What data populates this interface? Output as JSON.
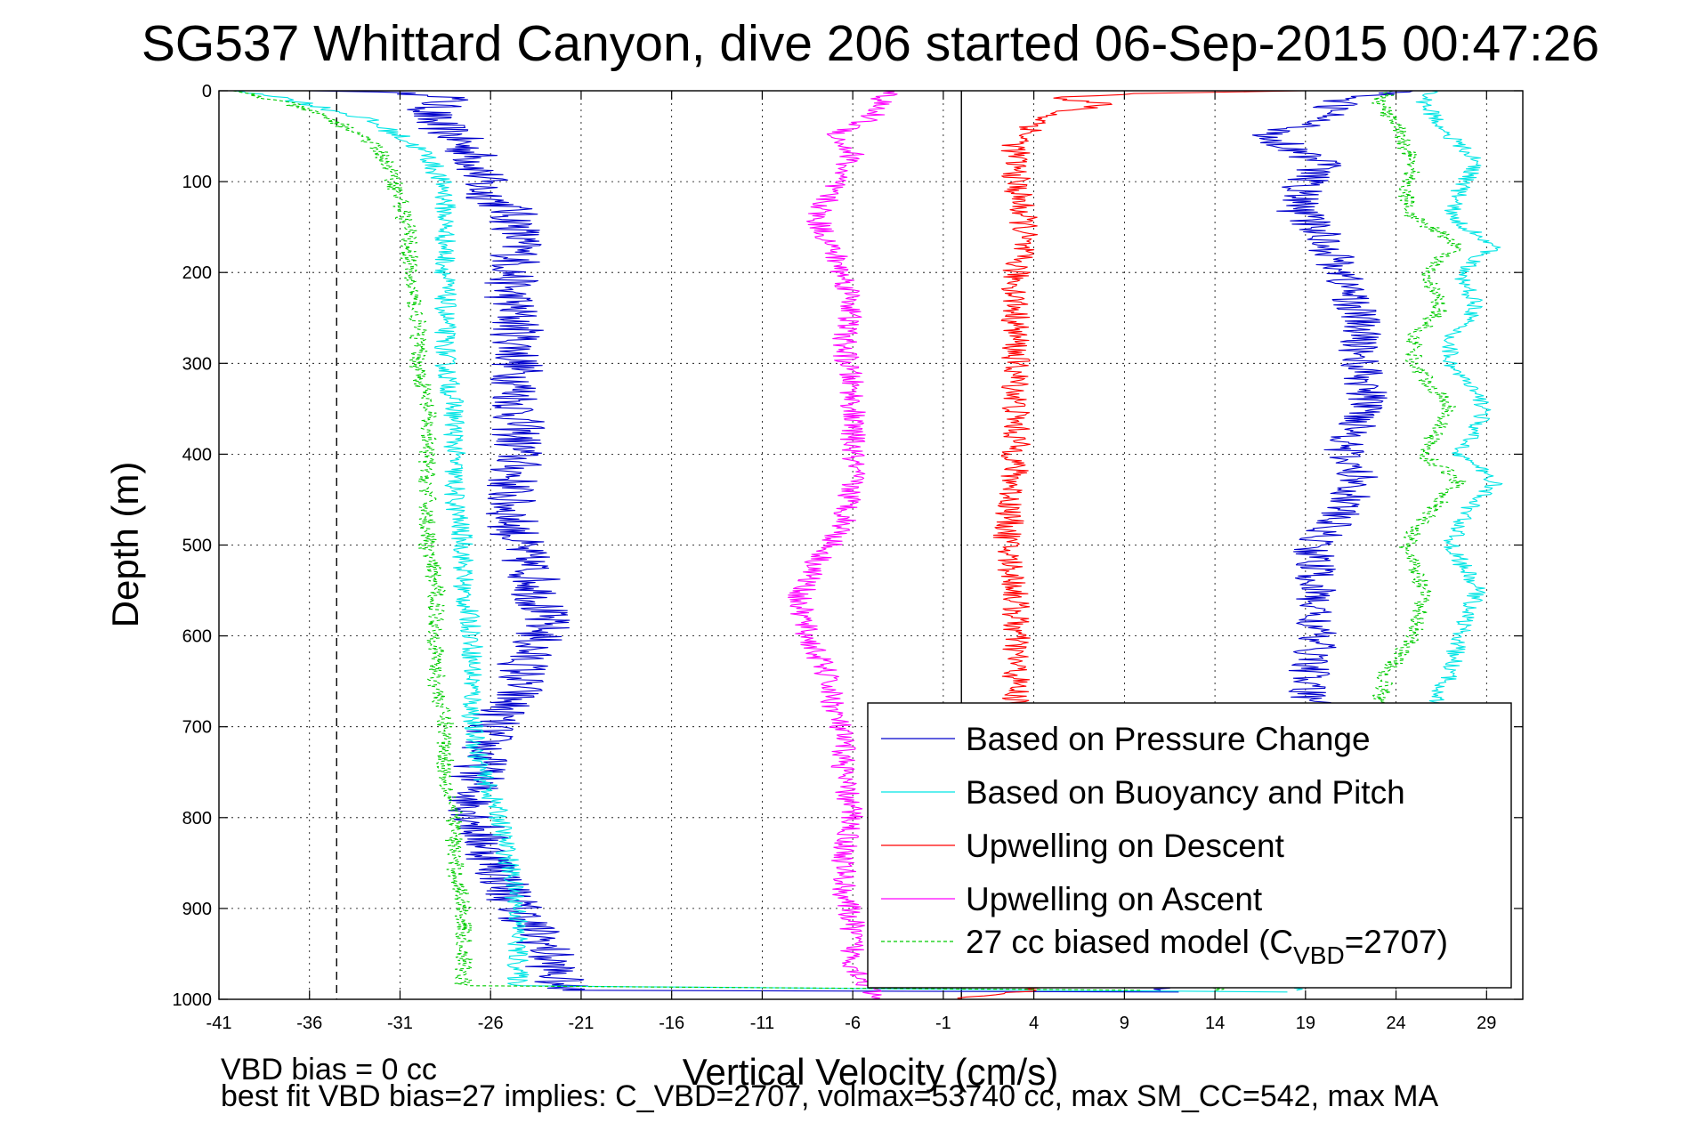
{
  "chart_data": {
    "type": "line",
    "title": "SG537 Whittard Canyon, dive 206 started 06-Sep-2015 00:47:26",
    "xlabel": "Vertical Velocity (cm/s)",
    "ylabel": "Depth (m)",
    "xlim": [
      -41,
      31
    ],
    "ylim": [
      1000,
      0
    ],
    "xticks": [
      -41,
      -36,
      -31,
      -26,
      -21,
      -16,
      -11,
      -6,
      -1,
      4,
      9,
      14,
      19,
      24,
      29
    ],
    "yticks": [
      0,
      100,
      200,
      300,
      400,
      500,
      600,
      700,
      800,
      900,
      1000
    ],
    "xgrid": true,
    "ygrid": true,
    "legend_position": "bottom-right",
    "reference_lines": [
      {
        "x": 0,
        "style": "solid",
        "color": "#000000"
      },
      {
        "x": -34.5,
        "style": "dashed",
        "color": "#000000"
      }
    ],
    "series": [
      {
        "name": "Based on Pressure Change",
        "color": "#0000cc",
        "style": "solid",
        "noise": 1.5,
        "depth": [
          0,
          5,
          15,
          30,
          50,
          70,
          90,
          110,
          130,
          150,
          180,
          220,
          260,
          300,
          350,
          400,
          450,
          500,
          540,
          590,
          620,
          660,
          700,
          740,
          780,
          820,
          860,
          900,
          940,
          970,
          990,
          992
        ],
        "velocity": [
          -35,
          -28,
          -29,
          -29.5,
          -28,
          -27,
          -26.5,
          -26.5,
          -25,
          -24.5,
          -24.5,
          -25,
          -24.5,
          -24.5,
          -24.5,
          -24.5,
          -25,
          -24.5,
          -23.5,
          -23,
          -24,
          -24.5,
          -26,
          -26.5,
          -27,
          -26.5,
          -25.5,
          -24.5,
          -23,
          -22.5,
          -22,
          12
        ]
      },
      {
        "name": "Based on Buoyancy and Pitch",
        "color": "#00e5e5",
        "style": "solid",
        "noise": 0.6,
        "depth": [
          0,
          5,
          15,
          30,
          50,
          70,
          90,
          110,
          150,
          200,
          260,
          300,
          350,
          400,
          450,
          500,
          550,
          600,
          650,
          700,
          750,
          800,
          850,
          900,
          950,
          985,
          992
        ],
        "velocity": [
          -40,
          -38,
          -36,
          -33,
          -31,
          -29.5,
          -29,
          -28.5,
          -28.5,
          -28.5,
          -28.5,
          -28.5,
          -28,
          -28,
          -28,
          -27.5,
          -27.5,
          -27,
          -27,
          -27,
          -26.5,
          -25.5,
          -25,
          -24.5,
          -24.5,
          -24.5,
          18
        ]
      },
      {
        "name": "Upwelling on Descent",
        "color": "#ff0000",
        "style": "solid",
        "noise": 0.8,
        "depth": [
          0,
          3,
          8,
          15,
          25,
          40,
          60,
          100,
          150,
          200,
          300,
          400,
          500,
          550,
          600,
          700,
          800,
          900,
          950,
          990,
          1000
        ],
        "velocity": [
          19,
          10,
          5,
          8,
          5,
          4,
          3,
          3,
          3.5,
          3,
          3,
          3,
          2.5,
          3,
          3,
          3,
          3,
          3,
          3.5,
          4,
          0
        ]
      },
      {
        "name": "Upwelling on Ascent",
        "color": "#ff00ff",
        "style": "solid",
        "noise": 0.7,
        "depth": [
          0,
          10,
          30,
          50,
          70,
          100,
          140,
          180,
          230,
          280,
          330,
          380,
          430,
          480,
          520,
          560,
          600,
          640,
          680,
          720,
          760,
          800,
          840,
          880,
          920,
          960,
          990,
          1000
        ],
        "velocity": [
          -4,
          -4.5,
          -5,
          -7,
          -6,
          -7,
          -8,
          -7,
          -6,
          -6.5,
          -6,
          -6,
          -6,
          -6.5,
          -8,
          -9,
          -8.5,
          -7.5,
          -7,
          -6.5,
          -6.5,
          -6,
          -6.5,
          -6.5,
          -6,
          -6,
          -5,
          -5
        ]
      },
      {
        "name": "27 cc biased model (C<sub>VBD</sub>=2707)",
        "legend_label": "27 cc biased model (C",
        "legend_sub": "VBD",
        "legend_suffix": "=2707)",
        "color": "#00cc00",
        "style": "dashed",
        "noise": 0.5,
        "depth": [
          0,
          5,
          15,
          30,
          50,
          70,
          90,
          120,
          160,
          200,
          260,
          300,
          350,
          400,
          450,
          500,
          550,
          600,
          650,
          700,
          750,
          800,
          850,
          900,
          950,
          985,
          990
        ],
        "velocity": [
          -40,
          -39,
          -37,
          -35,
          -33,
          -32,
          -31.5,
          -31,
          -30.5,
          -30.5,
          -30,
          -30,
          -29.5,
          -29.5,
          -29.5,
          -29.5,
          -29,
          -29,
          -29,
          -28.5,
          -28.5,
          -28,
          -28,
          -27.5,
          -27.5,
          -27.5,
          10
        ]
      },
      {
        "name": "Based on Pressure Change (ascent)",
        "legend": false,
        "color": "#0000cc",
        "style": "solid",
        "noise": 1.2,
        "depth": [
          0,
          10,
          30,
          50,
          80,
          100,
          130,
          160,
          200,
          250,
          300,
          350,
          400,
          430,
          460,
          500,
          540,
          580,
          620,
          660,
          700,
          760,
          820,
          880,
          940,
          975,
          990
        ],
        "velocity": [
          24,
          21,
          20,
          17,
          20,
          19,
          18.5,
          20,
          21,
          22,
          22,
          22.5,
          21,
          22,
          21,
          19.5,
          19.5,
          19.5,
          19.5,
          19,
          20,
          20,
          19,
          17,
          15,
          12,
          11
        ]
      },
      {
        "name": "Based on Buoyancy and Pitch (ascent)",
        "legend": false,
        "color": "#00e5e5",
        "style": "solid",
        "noise": 0.5,
        "depth": [
          0,
          10,
          40,
          80,
          110,
          140,
          170,
          200,
          240,
          270,
          300,
          350,
          400,
          430,
          460,
          500,
          550,
          600,
          640,
          680,
          720,
          760,
          800,
          850,
          900,
          940,
          970,
          990
        ],
        "velocity": [
          26,
          25.5,
          26.5,
          28.5,
          27.5,
          27,
          29.5,
          27.5,
          28.5,
          27,
          27,
          29,
          27.5,
          29.5,
          28,
          27,
          28.5,
          27.5,
          27,
          26,
          25.5,
          25,
          24,
          23,
          22,
          21,
          20,
          18.5
        ]
      },
      {
        "name": "27 cc biased model (ascent)",
        "legend": false,
        "color": "#00cc00",
        "style": "dashed",
        "noise": 0.5,
        "depth": [
          0,
          10,
          40,
          80,
          110,
          140,
          170,
          200,
          240,
          270,
          300,
          350,
          400,
          430,
          460,
          500,
          550,
          600,
          640,
          680,
          720,
          760,
          800,
          850,
          900,
          940,
          970,
          990
        ],
        "velocity": [
          24,
          23,
          24,
          25,
          24.5,
          25,
          27.5,
          25.5,
          26.5,
          25,
          25,
          27,
          25.5,
          27.5,
          26,
          24.5,
          25.5,
          25,
          23.5,
          23,
          22.5,
          22,
          21,
          20,
          19,
          17.5,
          15.5,
          14
        ]
      }
    ]
  },
  "footer": {
    "line1": "VBD bias = 0 cc",
    "line2": "best fit VBD bias=27 implies: C_VBD=2707, volmax=53740 cc, max SM_CC=542, max MA"
  }
}
